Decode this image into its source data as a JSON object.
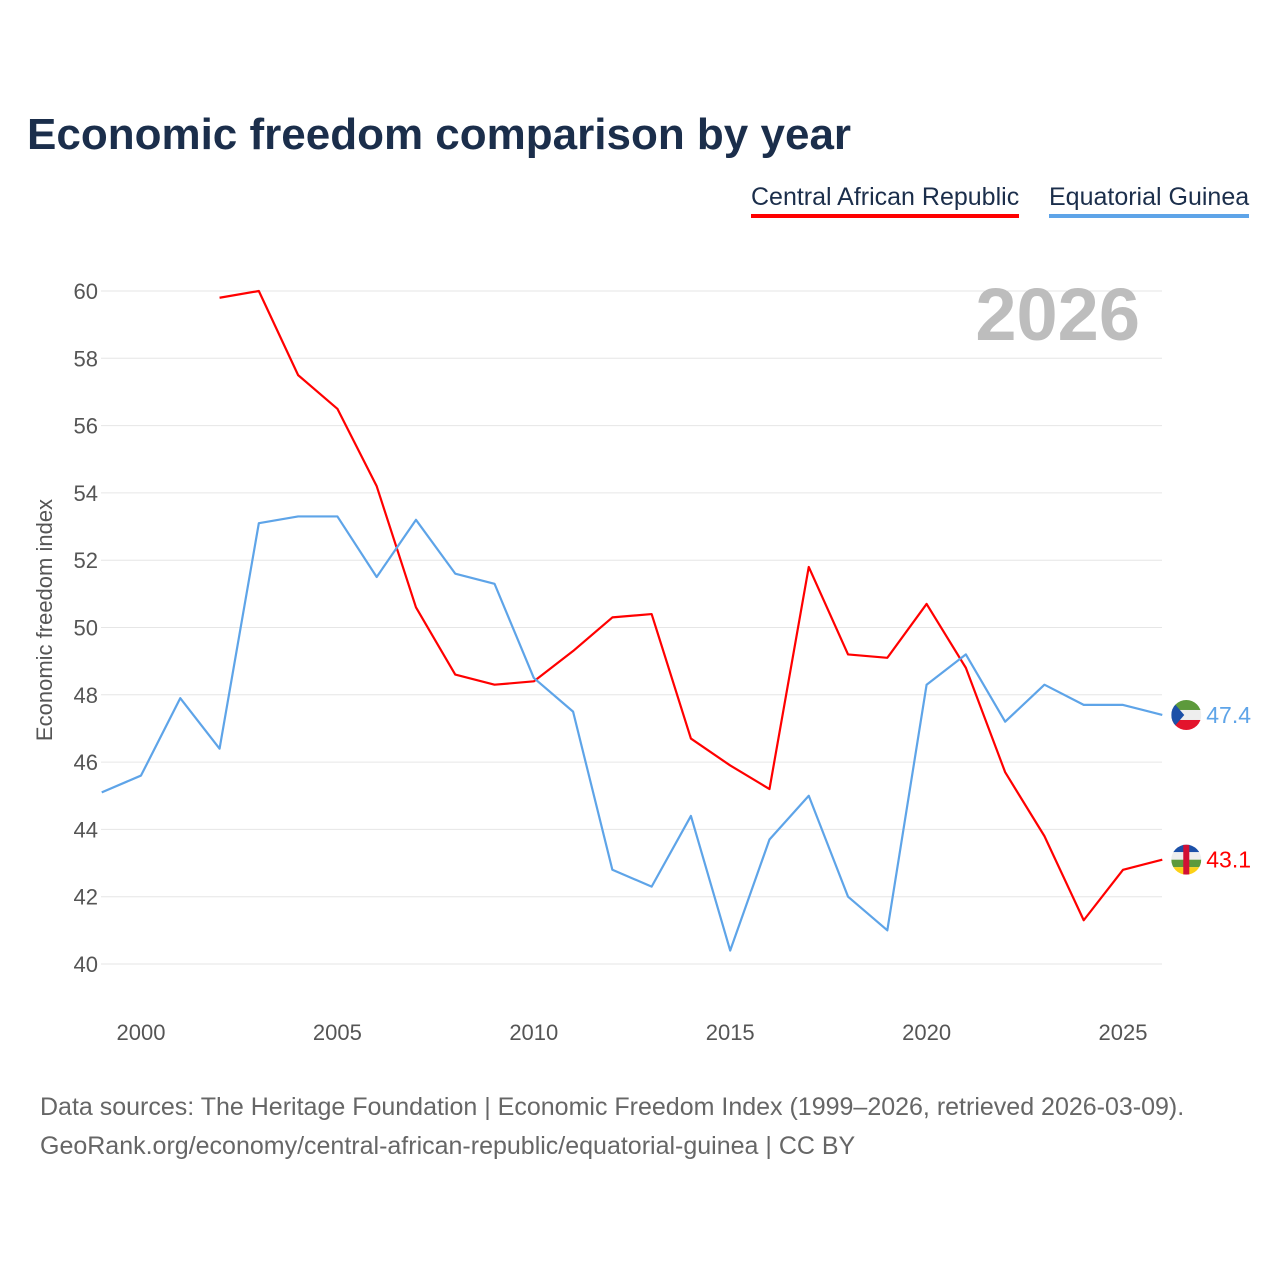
{
  "chart_data": {
    "type": "line",
    "title": "Economic freedom comparison by year",
    "ylabel": "Economic freedom index",
    "xlabel": "",
    "ylim": [
      40,
      60
    ],
    "xlim": [
      1999,
      2026
    ],
    "yticks": [
      40,
      42,
      44,
      46,
      48,
      50,
      52,
      54,
      56,
      58,
      60
    ],
    "xticks": [
      2000,
      2005,
      2010,
      2015,
      2020,
      2025
    ],
    "grid": true,
    "legend_position": "top-right",
    "year_label": "2026",
    "series": [
      {
        "name": "Central African Republic",
        "color": "#ff0000",
        "end_label": "43.1",
        "x": [
          2002,
          2003,
          2004,
          2005,
          2006,
          2007,
          2008,
          2009,
          2010,
          2011,
          2012,
          2013,
          2014,
          2015,
          2016,
          2017,
          2018,
          2019,
          2020,
          2021,
          2022,
          2023,
          2024,
          2025,
          2026
        ],
        "values": [
          59.8,
          60.0,
          57.5,
          56.5,
          54.2,
          50.6,
          48.6,
          48.3,
          48.4,
          49.3,
          50.3,
          50.4,
          46.7,
          45.9,
          45.2,
          51.8,
          49.2,
          49.1,
          50.7,
          48.8,
          45.7,
          43.8,
          41.3,
          42.8,
          43.1
        ]
      },
      {
        "name": "Equatorial Guinea",
        "color": "#5ea4e8",
        "end_label": "47.4",
        "x": [
          1999,
          2000,
          2001,
          2002,
          2003,
          2004,
          2005,
          2006,
          2007,
          2008,
          2009,
          2010,
          2011,
          2012,
          2013,
          2014,
          2015,
          2016,
          2017,
          2018,
          2019,
          2020,
          2021,
          2022,
          2023,
          2024,
          2025,
          2026
        ],
        "values": [
          45.1,
          45.6,
          47.9,
          46.4,
          53.1,
          53.3,
          53.3,
          51.5,
          53.2,
          51.6,
          51.3,
          48.5,
          47.5,
          42.8,
          42.3,
          44.4,
          40.4,
          43.7,
          45.0,
          42.0,
          41.0,
          48.3,
          49.2,
          47.2,
          48.3,
          47.7,
          47.7,
          47.4
        ]
      }
    ]
  },
  "source_line1": "Data sources: The Heritage Foundation | Economic Freedom Index (1999–2026, retrieved 2026-03-09).",
  "source_line2": "GeoRank.org/economy/central-african-republic/equatorial-guinea | CC BY"
}
